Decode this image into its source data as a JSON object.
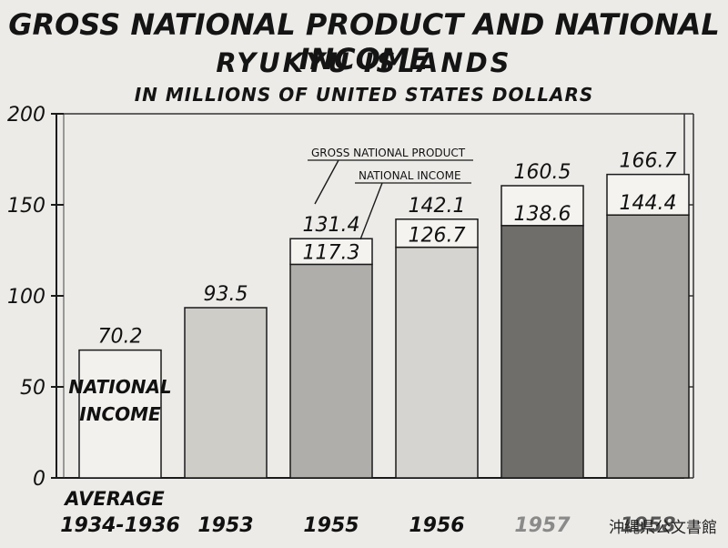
{
  "chart_data": {
    "type": "bar",
    "title": "GROSS NATIONAL PRODUCT AND NATIONAL INCOME",
    "subtitle": "RYUKYU ISLANDS",
    "units_note": "IN MILLIONS OF UNITED STATES DOLLARS",
    "categories_line1": [
      "AVERAGE",
      "",
      "",
      "",
      "",
      ""
    ],
    "categories": [
      "1934-1936",
      "1953",
      "1955",
      "1956",
      "1957",
      "1958"
    ],
    "series": [
      {
        "name": "GROSS NATIONAL PRODUCT",
        "values": [
          null,
          null,
          131.4,
          142.1,
          160.5,
          166.7
        ]
      },
      {
        "name": "NATIONAL INCOME",
        "values": [
          70.2,
          93.5,
          117.3,
          126.7,
          138.6,
          144.4
        ]
      }
    ],
    "value_labels_gnp": [
      "",
      "",
      "131.4",
      "142.1",
      "160.5",
      "166.7"
    ],
    "value_labels_ni": [
      "70.2",
      "93.5",
      "117.3",
      "126.7",
      "138.6",
      "144.4"
    ],
    "bar_inner_label": "NATIONAL INCOME",
    "ylim": [
      0,
      200
    ],
    "yticks": [
      0,
      50,
      100,
      150,
      200
    ],
    "ytick_labels": [
      "0",
      "50",
      "100",
      "150",
      "200"
    ],
    "fill_colors": [
      "#f2f1ee",
      "#cfcdc8",
      "#b0aeaa",
      "#d6d4d0",
      "#706e6b",
      "#a4a29e"
    ],
    "callouts": {
      "gnp": "GROSS NATIONAL PRODUCT",
      "ni": "NATIONAL INCOME"
    },
    "grid": false
  },
  "watermark": "沖縄県公文書館"
}
